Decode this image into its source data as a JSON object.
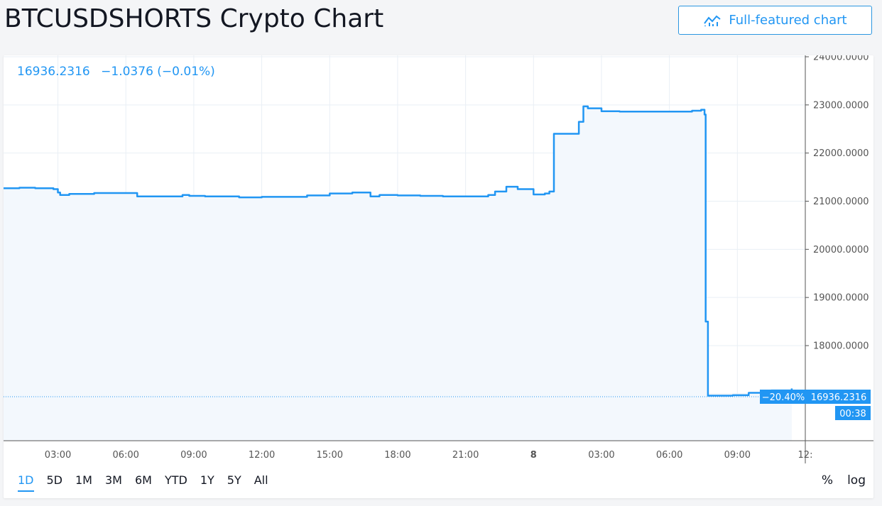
{
  "header": {
    "title": "BTCUSDSHORTS Crypto Chart",
    "full_chart_label": "Full-featured chart",
    "full_chart_icon": "chart-line-icon"
  },
  "legend": {
    "price": "16936.2316",
    "change": "−1.0376 (−0.01%)"
  },
  "toolbar": {
    "ranges": [
      "1D",
      "5D",
      "1M",
      "3M",
      "6M",
      "YTD",
      "1Y",
      "5Y",
      "All"
    ],
    "active_range": "1D",
    "percent_label": "%",
    "log_label": "log"
  },
  "colors": {
    "line": "#2196f3",
    "grid": "#e9eff5",
    "area": "#f3f8fd"
  },
  "chart_data": {
    "type": "area",
    "title": "",
    "xlabel": "",
    "ylabel": "",
    "ylim": [
      16000,
      24000
    ],
    "y_ticks": [
      "18000.0000",
      "19000.0000",
      "20000.0000",
      "21000.0000",
      "22000.0000",
      "23000.0000",
      "24000.0000"
    ],
    "y_tick_values": [
      18000,
      19000,
      20000,
      21000,
      22000,
      23000,
      24000
    ],
    "x_ticks": [
      "03:00",
      "06:00",
      "09:00",
      "12:00",
      "15:00",
      "18:00",
      "21:00",
      "8",
      "03:00",
      "06:00",
      "09:00",
      "12:"
    ],
    "x_tick_hours": [
      3,
      6,
      9,
      12,
      15,
      18,
      21,
      24,
      27,
      30,
      33,
      36
    ],
    "xlim_hours": [
      0.6,
      36.0
    ],
    "grid": true,
    "last_price_label": "16936.2316",
    "last_change_label": "−20.40%",
    "countdown_label": "00:38",
    "series": [
      {
        "x": [
          0.6,
          1.3,
          2.0,
          2.8,
          3.0,
          3.1,
          3.5,
          4.0,
          4.6,
          5.2,
          5.8,
          6.5,
          7.5,
          8.5,
          8.8,
          9.5,
          10.0,
          11.0,
          12.0,
          13.0,
          14.0,
          15.0,
          16.0,
          16.8,
          17.2,
          18.0,
          19.0,
          20.0,
          21.0,
          22.0,
          22.3,
          22.8,
          23.3,
          24.0,
          24.5,
          24.7,
          24.9,
          26.0,
          26.2,
          26.4,
          27.0,
          27.8,
          29.0,
          30.0,
          31.0,
          31.4,
          31.55,
          31.6,
          31.7,
          32.2,
          32.8,
          33.5,
          34.5,
          35.4
        ],
        "y": [
          21270,
          21280,
          21270,
          21250,
          21180,
          21130,
          21150,
          21150,
          21170,
          21170,
          21170,
          21100,
          21100,
          21130,
          21110,
          21100,
          21100,
          21080,
          21090,
          21090,
          21120,
          21160,
          21180,
          21100,
          21130,
          21120,
          21110,
          21100,
          21100,
          21130,
          21200,
          21300,
          21250,
          21140,
          21160,
          21200,
          22400,
          22650,
          22970,
          22930,
          22870,
          22860,
          22860,
          22860,
          22880,
          22900,
          22800,
          18500,
          16960,
          16960,
          16970,
          17020,
          17070,
          17110
        ]
      }
    ]
  }
}
